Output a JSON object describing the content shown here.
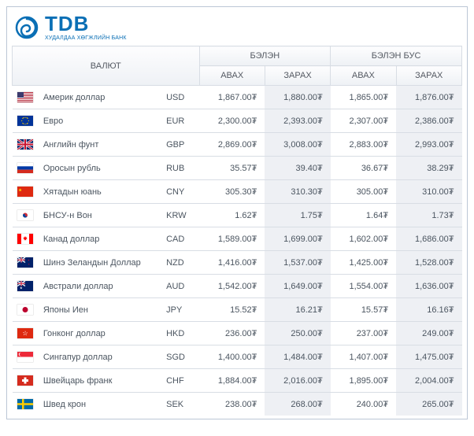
{
  "logo": {
    "name": "TDB",
    "tagline": "ХУДАЛДАА ХӨГЖЛИЙН БАНК",
    "color": "#0a6fb5"
  },
  "header": {
    "currency": "ВАЛЮТ",
    "cash": "БЭЛЭН",
    "noncash": "БЭЛЭН БУС",
    "buy": "АВАХ",
    "sell": "ЗАРАХ"
  },
  "currency_symbol": "₮",
  "rows": [
    {
      "flag": "us",
      "name": "Америк доллар",
      "code": "USD",
      "cash_buy": "1,867.00",
      "cash_sell": "1,880.00",
      "nc_buy": "1,865.00",
      "nc_sell": "1,876.00"
    },
    {
      "flag": "eu",
      "name": "Евро",
      "code": "EUR",
      "cash_buy": "2,300.00",
      "cash_sell": "2,393.00",
      "nc_buy": "2,307.00",
      "nc_sell": "2,386.00"
    },
    {
      "flag": "gb",
      "name": "Английн фунт",
      "code": "GBP",
      "cash_buy": "2,869.00",
      "cash_sell": "3,008.00",
      "nc_buy": "2,883.00",
      "nc_sell": "2,993.00"
    },
    {
      "flag": "ru",
      "name": "Оросын рубль",
      "code": "RUB",
      "cash_buy": "35.57",
      "cash_sell": "39.40",
      "nc_buy": "36.67",
      "nc_sell": "38.29"
    },
    {
      "flag": "cn",
      "name": "Хятадын юань",
      "code": "CNY",
      "cash_buy": "305.30",
      "cash_sell": "310.30",
      "nc_buy": "305.00",
      "nc_sell": "310.00"
    },
    {
      "flag": "kr",
      "name": "БНСУ-н Вон",
      "code": "KRW",
      "cash_buy": "1.62",
      "cash_sell": "1.75",
      "nc_buy": "1.64",
      "nc_sell": "1.73"
    },
    {
      "flag": "ca",
      "name": "Канад доллар",
      "code": "CAD",
      "cash_buy": "1,589.00",
      "cash_sell": "1,699.00",
      "nc_buy": "1,602.00",
      "nc_sell": "1,686.00"
    },
    {
      "flag": "nz",
      "name": "Шинэ Зеландын Доллар",
      "code": "NZD",
      "cash_buy": "1,416.00",
      "cash_sell": "1,537.00",
      "nc_buy": "1,425.00",
      "nc_sell": "1,528.00"
    },
    {
      "flag": "au",
      "name": "Австрали доллар",
      "code": "AUD",
      "cash_buy": "1,542.00",
      "cash_sell": "1,649.00",
      "nc_buy": "1,554.00",
      "nc_sell": "1,636.00"
    },
    {
      "flag": "jp",
      "name": "Японы Иен",
      "code": "JPY",
      "cash_buy": "15.52",
      "cash_sell": "16.21",
      "nc_buy": "15.57",
      "nc_sell": "16.16"
    },
    {
      "flag": "hk",
      "name": "Гонконг доллар",
      "code": "HKD",
      "cash_buy": "236.00",
      "cash_sell": "250.00",
      "nc_buy": "237.00",
      "nc_sell": "249.00"
    },
    {
      "flag": "sg",
      "name": "Сингапур доллар",
      "code": "SGD",
      "cash_buy": "1,400.00",
      "cash_sell": "1,484.00",
      "nc_buy": "1,407.00",
      "nc_sell": "1,475.00"
    },
    {
      "flag": "ch",
      "name": "Швейцарь франк",
      "code": "CHF",
      "cash_buy": "1,884.00",
      "cash_sell": "2,016.00",
      "nc_buy": "1,895.00",
      "nc_sell": "2,004.00"
    },
    {
      "flag": "se",
      "name": "Швед крон",
      "code": "SEK",
      "cash_buy": "238.00",
      "cash_sell": "268.00",
      "nc_buy": "240.00",
      "nc_sell": "265.00"
    }
  ],
  "flags": {
    "us": "<svg viewBox='0 0 20 13'><rect width='20' height='13' fill='#b22234'/><g fill='#fff'><rect y='1' width='20' height='1'/><rect y='3' width='20' height='1'/><rect y='5' width='20' height='1'/><rect y='7' width='20' height='1'/><rect y='9' width='20' height='1'/><rect y='11' width='20' height='1'/></g><rect width='8' height='7' fill='#3c3b6e'/></svg>",
    "eu": "<svg viewBox='0 0 20 13'><rect width='20' height='13' fill='#003399'/><g fill='#ffcc00'><circle cx='10' cy='2.2' r='.6'/><circle cx='10' cy='10.8' r='.6'/><circle cx='5.7' cy='6.5' r='.6'/><circle cx='14.3' cy='6.5' r='.6'/><circle cx='6.9' cy='3.5' r='.6'/><circle cx='13.1' cy='3.5' r='.6'/><circle cx='6.9' cy='9.5' r='.6'/><circle cx='13.1' cy='9.5' r='.6'/><circle cx='12.2' cy='2.6' r='.6'/><circle cx='7.8' cy='2.6' r='.6'/><circle cx='12.2' cy='10.4' r='.6'/><circle cx='7.8' cy='10.4' r='.6'/></g></svg>",
    "gb": "<svg viewBox='0 0 20 13'><rect width='20' height='13' fill='#012169'/><path d='M0 0l20 13M20 0L0 13' stroke='#fff' stroke-width='2.6'/><path d='M0 0l20 13M20 0L0 13' stroke='#c8102e' stroke-width='1.2'/><path d='M10 0v13M0 6.5h20' stroke='#fff' stroke-width='3.4'/><path d='M10 0v13M0 6.5h20' stroke='#c8102e' stroke-width='2'/></svg>",
    "ru": "<svg viewBox='0 0 20 13'><rect width='20' height='13' fill='#fff'/><rect y='4.33' width='20' height='4.33' fill='#0039a6'/><rect y='8.66' width='20' height='4.34' fill='#d52b1e'/></svg>",
    "cn": "<svg viewBox='0 0 20 13'><rect width='20' height='13' fill='#de2910'/><polygon points='3,2 3.6,3.8 5.5,3.8 4,4.9 4.6,6.7 3,5.6 1.4,6.7 2,4.9 .5,3.8 2.4,3.8' fill='#ffde00' transform='scale(.9) translate(1 .3)'/></svg>",
    "kr": "<svg viewBox='0 0 20 13'><rect width='20' height='13' fill='#fff'/><circle cx='10' cy='6.5' r='3' fill='#cd2e3a'/><path d='M7 6.5a3 3 0 006 0 1.5 1.5 0 01-3 0 1.5 1.5 0 00-3 0z' fill='#0047a0'/></svg>",
    "ca": "<svg viewBox='0 0 20 13'><rect width='20' height='13' fill='#fff'/><rect width='5' height='13' fill='#ff0000'/><rect x='15' width='5' height='13' fill='#ff0000'/><path d='M10 3l.8 1.6 1.7-.3-1 1.5 1.3 1-1.8.2.2 1.8-1.2-1.3-1.2 1.3.2-1.8-1.8-.2 1.3-1-1-1.5 1.7.3z' fill='#ff0000'/></svg>",
    "nz": "<svg viewBox='0 0 20 13'><rect width='20' height='13' fill='#012169'/><g transform='scale(.5)'><path d='M0 0l20 13M20 0L0 13' stroke='#fff' stroke-width='2.6'/><path d='M10 0v13M0 6.5h20' stroke='#fff' stroke-width='3.4'/><path d='M10 0v13M0 6.5h20' stroke='#c8102e' stroke-width='2'/></g><g fill='#c8102e'><polygon points='15,3 15.4,4 16.4,4 15.6,4.6 16,5.6 15,5 14,5.6 14.4,4.6 13.6,4 14.6,4' transform='scale(.8) translate(3 0)'/><polygon points='15,3 15.4,4 16.4,4 15.6,4.6 16,5.6 15,5 14,5.6 14.4,4.6 13.6,4 14.6,4' transform='scale(.7) translate(6 8)'/></g></svg>",
    "au": "<svg viewBox='0 0 20 13'><rect width='20' height='13' fill='#012169'/><g transform='scale(.5)'><path d='M0 0l20 13M20 0L0 13' stroke='#fff' stroke-width='2.6'/><path d='M10 0v13M0 6.5h20' stroke='#fff' stroke-width='3.4'/><path d='M10 0v13M0 6.5h20' stroke='#c8102e' stroke-width='2'/></g><g fill='#fff'><polygon points='5,8 5.5,9.5 7,9.5 5.8,10.4 6.3,12 5,11 3.7,12 4.2,10.4 3,9.5 4.5,9.5' transform='scale(.8) translate(1 1)'/></g></svg>",
    "jp": "<svg viewBox='0 0 20 13'><rect width='20' height='13' fill='#fff'/><circle cx='10' cy='6.5' r='3.5' fill='#bc002d'/></svg>",
    "hk": "<svg viewBox='0 0 20 13'><rect width='20' height='13' fill='#de2910'/><g fill='#fff' transform='translate(10 6.5)'><path d='M0-3c1 1 .5 2-.5 2.5.8-.6.5-1.7 0-2z'/><path d='M0-3c1 1 .5 2-.5 2.5.8-.6.5-1.7 0-2z' transform='rotate(72)'/><path d='M0-3c1 1 .5 2-.5 2.5.8-.6.5-1.7 0-2z' transform='rotate(144)'/><path d='M0-3c1 1 .5 2-.5 2.5.8-.6.5-1.7 0-2z' transform='rotate(216)'/><path d='M0-3c1 1 .5 2-.5 2.5.8-.6.5-1.7 0-2z' transform='rotate(288)'/></g></svg>",
    "sg": "<svg viewBox='0 0 20 13'><rect width='20' height='6.5' fill='#ed2939'/><rect y='6.5' width='20' height='6.5' fill='#fff'/><circle cx='4' cy='3.2' r='2.2' fill='#fff'/><circle cx='5' cy='3.2' r='2.2' fill='#ed2939'/></svg>",
    "ch": "<svg viewBox='0 0 20 13'><rect width='20' height='13' fill='#d52b1e'/><rect x='8.5' y='2.5' width='3' height='8' fill='#fff'/><rect x='6' y='5' width='8' height='3' fill='#fff'/></svg>",
    "se": "<svg viewBox='0 0 20 13'><rect width='20' height='13' fill='#006aa7'/><rect x='6' width='2.5' height='13' fill='#fecc00'/><rect y='5.25' width='20' height='2.5' fill='#fecc00'/></svg>"
  }
}
